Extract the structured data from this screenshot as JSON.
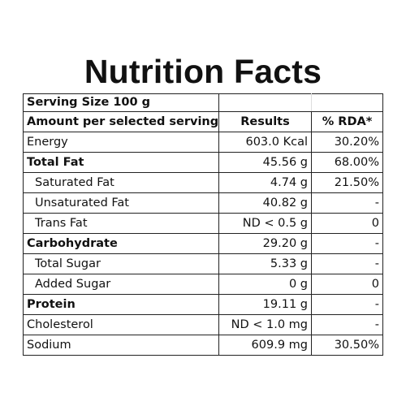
{
  "title": "Nutrition Facts",
  "serving_size": "Serving Size 100 g",
  "headers": [
    "Amount per selected serving",
    "Results",
    "% RDA*"
  ],
  "rows": [
    {
      "name": "Energy",
      "result": "603.0 Kcal",
      "rda": "30.20%"
    },
    {
      "name": "Total Fat",
      "result": "45.56 g",
      "rda": "68.00%"
    },
    {
      "name": "Saturated Fat",
      "result": "4.74 g",
      "rda": "21.50%"
    },
    {
      "name": "Unsaturated Fat",
      "result": "40.82 g",
      "rda": "-"
    },
    {
      "name": "Trans Fat",
      "result": "ND < 0.5 g",
      "rda": "0"
    },
    {
      "name": "Carbohydrate",
      "result": "29.20 g",
      "rda": "-"
    },
    {
      "name": "Total Sugar",
      "result": "5.33 g",
      "rda": "-"
    },
    {
      "name": "Added Sugar",
      "result": "0 g",
      "rda": "0"
    },
    {
      "name": "Protein",
      "result": "19.11 g",
      "rda": "-"
    },
    {
      "name": "Cholesterol",
      "result": "ND < 1.0 mg",
      "rda": "-"
    },
    {
      "name": "Sodium",
      "result": "609.9 mg",
      "rda": "30.50%"
    }
  ]
}
